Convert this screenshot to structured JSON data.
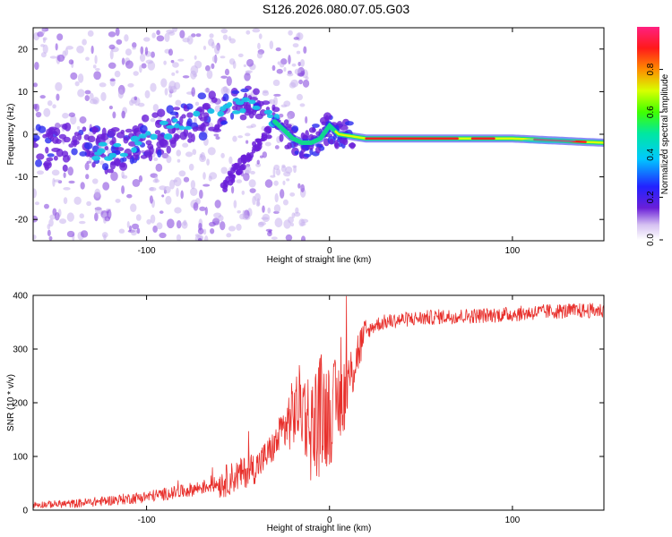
{
  "title": "S126.2026.080.07.05.G03",
  "chart_data": [
    {
      "type": "heatmap",
      "name": "spectrogram",
      "xlabel": "Height of straight line (km)",
      "ylabel": "Frequency (Hz)",
      "xlim": [
        -162,
        150
      ],
      "ylim": [
        -25,
        25
      ],
      "xticks": [
        -100,
        0,
        100
      ],
      "yticks": [
        -20,
        -10,
        0,
        10,
        20
      ],
      "colorbar": {
        "label": "Normalized spectral amplitude",
        "range": [
          0,
          1
        ],
        "ticks": [
          0.0,
          0.2,
          0.4,
          0.6,
          0.8
        ]
      },
      "ridge": {
        "x": [
          -160,
          -140,
          -120,
          -100,
          -90,
          -80,
          -70,
          -60,
          -50,
          -40,
          -30,
          -25,
          -20,
          -15,
          -10,
          -5,
          0,
          5,
          20,
          60,
          100,
          150
        ],
        "frequency": [
          -3,
          -3,
          -4,
          -1,
          1,
          2,
          4,
          5,
          7,
          8,
          3,
          1,
          -1,
          -2,
          -2,
          -1,
          2,
          0,
          -1,
          -1,
          -1,
          -2
        ]
      }
    },
    {
      "type": "line",
      "name": "snr",
      "xlabel": "Height of straight line (km)",
      "ylabel": "SNR (10 * v/v)",
      "xlim": [
        -162,
        150
      ],
      "ylim": [
        0,
        400
      ],
      "xticks": [
        -100,
        0,
        100
      ],
      "yticks": [
        0,
        100,
        200,
        300,
        400
      ],
      "color": "#e8302c",
      "trend": {
        "x": [
          -162,
          -140,
          -120,
          -100,
          -80,
          -60,
          -40,
          -30,
          -20,
          -15,
          -10,
          -5,
          0,
          5,
          10,
          15,
          20,
          25,
          30,
          40,
          60,
          80,
          100,
          120,
          150
        ],
        "y": [
          10,
          12,
          18,
          25,
          35,
          50,
          80,
          120,
          180,
          200,
          150,
          180,
          180,
          200,
          230,
          290,
          330,
          345,
          350,
          355,
          360,
          362,
          365,
          370,
          372
        ]
      }
    }
  ]
}
